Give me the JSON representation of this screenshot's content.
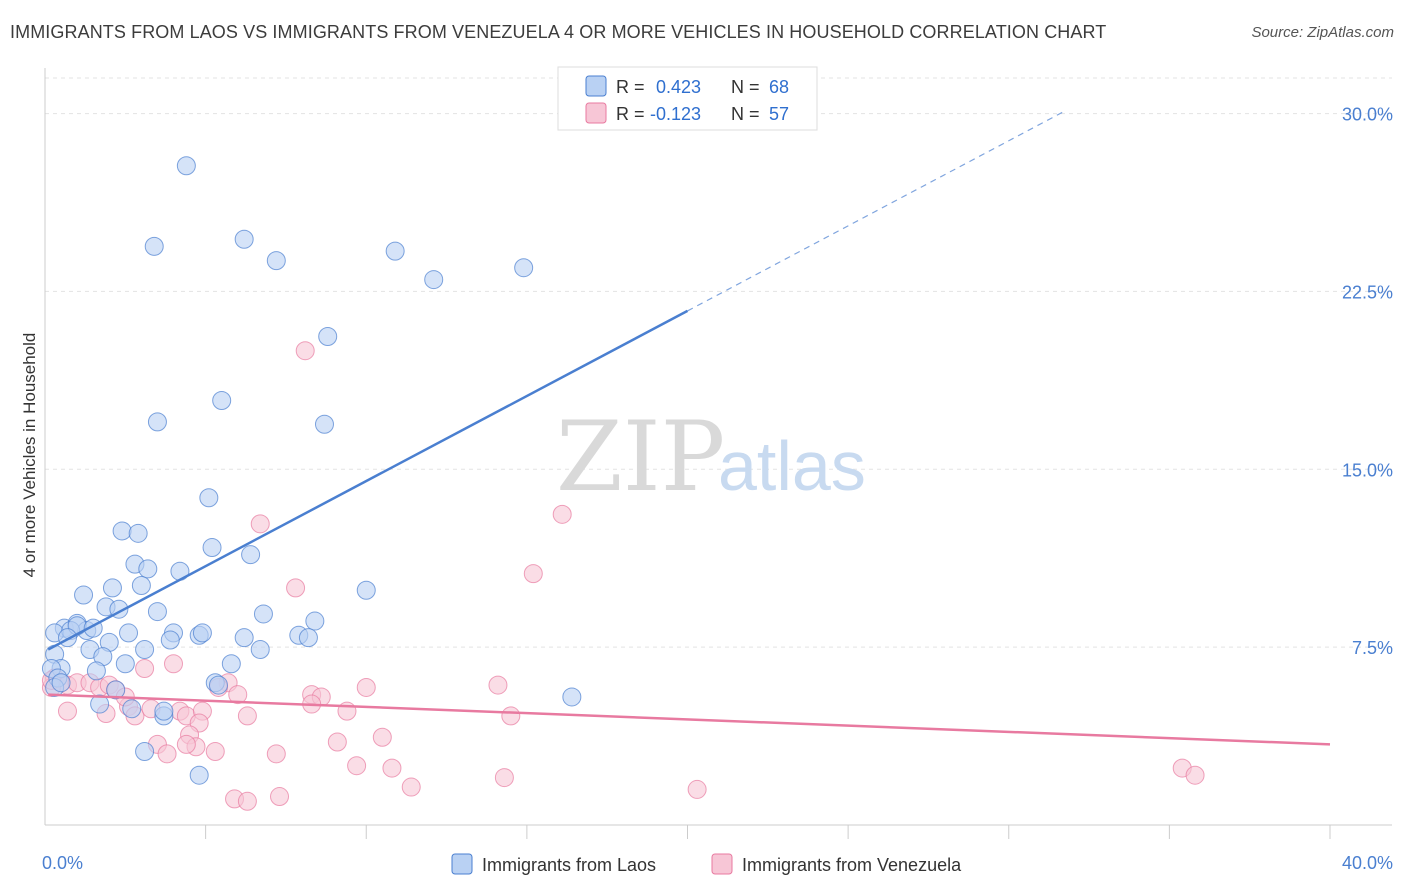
{
  "title": "IMMIGRANTS FROM LAOS VS IMMIGRANTS FROM VENEZUELA 4 OR MORE VEHICLES IN HOUSEHOLD CORRELATION CHART",
  "source": "Source: ZipAtlas.com",
  "watermark": {
    "zip": "ZIP",
    "atlas": "atlas"
  },
  "colors": {
    "laos": "#4a7fd0",
    "venezuela": "#e87aa0",
    "laos_fill": "#b9d1f3",
    "venezuela_fill": "#f7c6d6"
  },
  "legend": {
    "laos": {
      "r_label": "R =",
      "r_value": "0.423",
      "n_label": "N =",
      "n_value": "68"
    },
    "venezuela": {
      "r_label": "R =",
      "r_value": "-0.123",
      "n_label": "N =",
      "n_value": "57"
    }
  },
  "chart_data": {
    "type": "scatter",
    "title": "IMMIGRANTS FROM LAOS VS IMMIGRANTS FROM VENEZUELA 4 OR MORE VEHICLES IN HOUSEHOLD CORRELATION CHART",
    "xlabel": "",
    "ylabel": "4 or more Vehicles in Household",
    "xlim": [
      0,
      40
    ],
    "ylim": [
      0,
      31.5
    ],
    "x_tick_labels": [
      {
        "value": 0,
        "label": "0.0%"
      },
      {
        "value": 40,
        "label": "40.0%"
      }
    ],
    "y_tick_labels": [
      {
        "value": 7.5,
        "label": "7.5%"
      },
      {
        "value": 15.0,
        "label": "15.0%"
      },
      {
        "value": 22.5,
        "label": "22.5%"
      },
      {
        "value": 30.0,
        "label": "30.0%"
      }
    ],
    "legend_position": "bottom",
    "series": [
      {
        "name": "Immigrants from Laos",
        "color": "#4a7fd0",
        "points": [
          [
            4.4,
            27.8
          ],
          [
            3.4,
            24.4
          ],
          [
            6.2,
            24.7
          ],
          [
            7.2,
            23.8
          ],
          [
            10.9,
            24.2
          ],
          [
            14.9,
            23.5
          ],
          [
            12.1,
            23.0
          ],
          [
            8.8,
            20.6
          ],
          [
            5.5,
            17.9
          ],
          [
            3.5,
            17.0
          ],
          [
            8.7,
            16.9
          ],
          [
            5.1,
            13.8
          ],
          [
            2.4,
            12.4
          ],
          [
            2.9,
            12.3
          ],
          [
            5.2,
            11.7
          ],
          [
            6.4,
            11.4
          ],
          [
            2.8,
            11.0
          ],
          [
            3.2,
            10.8
          ],
          [
            4.2,
            10.7
          ],
          [
            2.1,
            10.0
          ],
          [
            3.0,
            10.1
          ],
          [
            10.0,
            9.9
          ],
          [
            1.2,
            9.7
          ],
          [
            1.9,
            9.2
          ],
          [
            2.3,
            9.1
          ],
          [
            3.5,
            9.0
          ],
          [
            6.8,
            8.9
          ],
          [
            0.6,
            8.3
          ],
          [
            1.0,
            8.5
          ],
          [
            1.3,
            8.2
          ],
          [
            0.3,
            8.1
          ],
          [
            0.8,
            8.2
          ],
          [
            1.0,
            8.4
          ],
          [
            0.7,
            7.9
          ],
          [
            1.5,
            8.3
          ],
          [
            2.6,
            8.1
          ],
          [
            4.0,
            8.1
          ],
          [
            4.8,
            8.0
          ],
          [
            4.9,
            8.1
          ],
          [
            6.2,
            7.9
          ],
          [
            7.9,
            8.0
          ],
          [
            8.4,
            8.6
          ],
          [
            8.2,
            7.9
          ],
          [
            3.9,
            7.8
          ],
          [
            2.0,
            7.7
          ],
          [
            1.4,
            7.4
          ],
          [
            3.1,
            7.4
          ],
          [
            6.7,
            7.4
          ],
          [
            0.3,
            7.2
          ],
          [
            1.8,
            7.1
          ],
          [
            2.5,
            6.8
          ],
          [
            5.8,
            6.8
          ],
          [
            0.5,
            6.6
          ],
          [
            1.6,
            6.5
          ],
          [
            0.2,
            6.6
          ],
          [
            0.4,
            6.2
          ],
          [
            5.3,
            6.0
          ],
          [
            5.4,
            5.9
          ],
          [
            2.2,
            5.7
          ],
          [
            1.7,
            5.1
          ],
          [
            0.3,
            5.8
          ],
          [
            2.7,
            4.9
          ],
          [
            3.7,
            4.6
          ],
          [
            3.7,
            4.8
          ],
          [
            3.1,
            3.1
          ],
          [
            4.8,
            2.1
          ],
          [
            16.4,
            5.4
          ],
          [
            0.5,
            6.0
          ]
        ]
      },
      {
        "name": "Immigrants from Venezuela",
        "color": "#e87aa0",
        "points": [
          [
            8.1,
            20.0
          ],
          [
            16.1,
            13.1
          ],
          [
            6.7,
            12.7
          ],
          [
            15.2,
            10.6
          ],
          [
            7.8,
            10.0
          ],
          [
            4.0,
            6.8
          ],
          [
            3.1,
            6.6
          ],
          [
            5.7,
            6.0
          ],
          [
            10.0,
            5.8
          ],
          [
            14.1,
            5.9
          ],
          [
            6.0,
            5.5
          ],
          [
            8.3,
            5.5
          ],
          [
            8.6,
            5.4
          ],
          [
            0.3,
            6.2
          ],
          [
            0.5,
            6.0
          ],
          [
            0.7,
            5.9
          ],
          [
            0.2,
            5.8
          ],
          [
            1.0,
            6.0
          ],
          [
            1.4,
            6.0
          ],
          [
            1.7,
            5.8
          ],
          [
            2.0,
            5.9
          ],
          [
            2.2,
            5.7
          ],
          [
            2.6,
            5.0
          ],
          [
            2.8,
            4.6
          ],
          [
            3.3,
            4.9
          ],
          [
            4.2,
            4.8
          ],
          [
            4.4,
            4.6
          ],
          [
            4.9,
            4.8
          ],
          [
            4.8,
            4.3
          ],
          [
            5.4,
            5.8
          ],
          [
            6.3,
            4.6
          ],
          [
            8.3,
            5.1
          ],
          [
            9.4,
            4.8
          ],
          [
            14.5,
            4.6
          ],
          [
            0.7,
            4.8
          ],
          [
            1.9,
            4.7
          ],
          [
            2.5,
            5.4
          ],
          [
            4.5,
            3.8
          ],
          [
            4.7,
            3.3
          ],
          [
            5.3,
            3.1
          ],
          [
            3.5,
            3.4
          ],
          [
            3.8,
            3.0
          ],
          [
            4.4,
            3.4
          ],
          [
            7.2,
            3.0
          ],
          [
            9.1,
            3.5
          ],
          [
            10.5,
            3.7
          ],
          [
            9.7,
            2.5
          ],
          [
            10.8,
            2.4
          ],
          [
            14.3,
            2.0
          ],
          [
            11.4,
            1.6
          ],
          [
            20.3,
            1.5
          ],
          [
            7.3,
            1.2
          ],
          [
            5.9,
            1.1
          ],
          [
            6.3,
            1.0
          ],
          [
            35.4,
            2.4
          ],
          [
            35.8,
            2.1
          ],
          [
            0.2,
            6.1
          ]
        ]
      }
    ],
    "trendlines": [
      {
        "series": "Immigrants from Laos",
        "solid_x": [
          0.1,
          20.0
        ],
        "dashed_x": [
          20.0,
          31.8
        ],
        "start_y": 7.4,
        "slope": 0.7175
      },
      {
        "series": "Immigrants from Venezuela",
        "x": [
          0.1,
          40.0
        ],
        "start_y": 5.5,
        "end_y": 3.4
      }
    ]
  }
}
